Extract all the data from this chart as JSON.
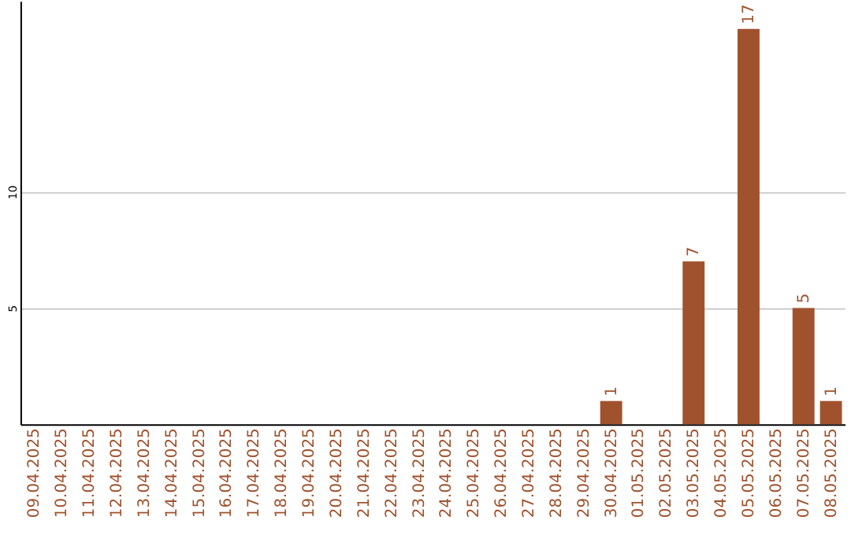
{
  "chart_data": {
    "type": "bar",
    "categories": [
      "09.04.2025",
      "10.04.2025",
      "11.04.2025",
      "12.04.2025",
      "13.04.2025",
      "14.04.2025",
      "15.04.2025",
      "16.04.2025",
      "17.04.2025",
      "18.04.2025",
      "19.04.2025",
      "20.04.2025",
      "21.04.2025",
      "22.04.2025",
      "23.04.2025",
      "24.04.2025",
      "25.04.2025",
      "26.04.2025",
      "27.04.2025",
      "28.04.2025",
      "29.04.2025",
      "30.04.2025",
      "01.05.2025",
      "02.05.2025",
      "03.05.2025",
      "04.05.2025",
      "05.05.2025",
      "06.05.2025",
      "07.05.2025",
      "08.05.2025"
    ],
    "values": [
      0,
      0,
      0,
      0,
      0,
      0,
      0,
      0,
      0,
      0,
      0,
      0,
      0,
      0,
      0,
      0,
      0,
      0,
      0,
      0,
      0,
      1,
      0,
      0,
      7,
      0,
      17,
      0,
      5,
      1
    ],
    "value_labels": [
      null,
      null,
      null,
      null,
      null,
      null,
      null,
      null,
      null,
      null,
      null,
      null,
      null,
      null,
      null,
      null,
      null,
      null,
      null,
      null,
      null,
      "1",
      null,
      null,
      "7",
      null,
      "17",
      null,
      "5",
      "1"
    ],
    "color": "#a0522d",
    "ylim": [
      0,
      18.2
    ],
    "yticks": [
      5,
      10
    ],
    "grid": "y"
  }
}
